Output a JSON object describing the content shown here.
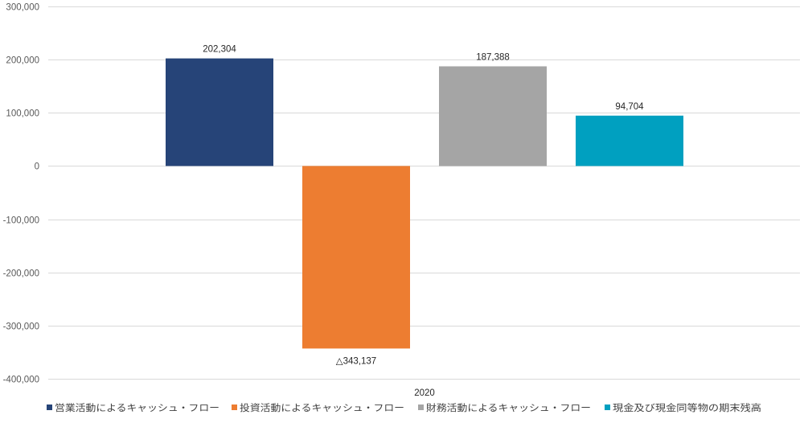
{
  "chart_data": {
    "type": "bar",
    "categories": [
      "2020"
    ],
    "series": [
      {
        "name": "営業活動によるキャッシュ・フロー",
        "values": [
          202304
        ],
        "label": "202,304",
        "color": "#264478"
      },
      {
        "name": "投資活動によるキャッシュ・フロー",
        "values": [
          -343137
        ],
        "label": "△343,137",
        "color": "#ED7D31"
      },
      {
        "name": "財務活動によるキャッシュ・フロー",
        "values": [
          187388
        ],
        "label": "187,388",
        "color": "#A5A5A5"
      },
      {
        "name": "現金及び現金同等物の期末残高",
        "values": [
          94704
        ],
        "label": "94,704",
        "color": "#00A0C0"
      }
    ],
    "ylim": [
      -400000,
      300000
    ],
    "yticks": [
      300000,
      200000,
      100000,
      0,
      -100000,
      -200000,
      -300000,
      -400000
    ],
    "ytick_labels": [
      "300,000",
      "200,000",
      "100,000",
      "0",
      "-100,000",
      "-200,000",
      "-300,000",
      "-400,000"
    ],
    "grid": true,
    "legend_position": "bottom",
    "gridline_color": "#D9D9D9"
  }
}
